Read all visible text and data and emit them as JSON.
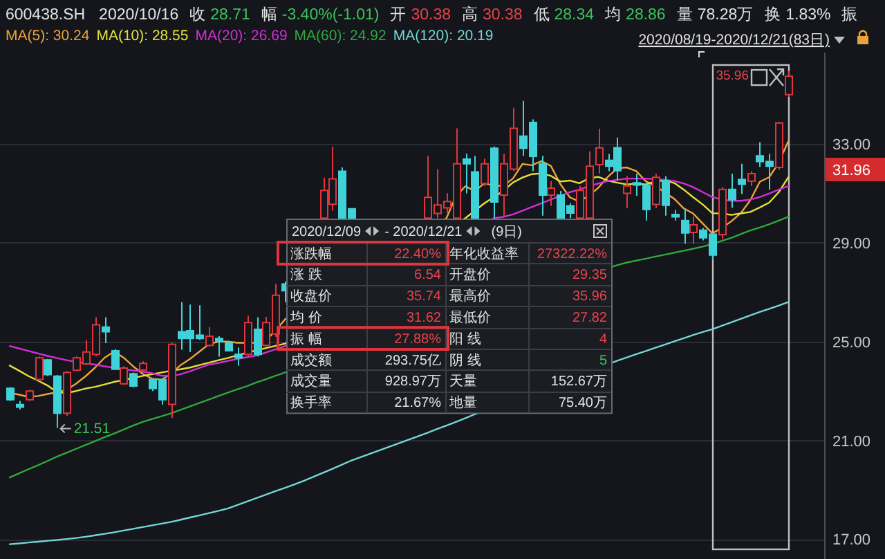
{
  "chart_data": {
    "type": "candlestick",
    "categories": [
      null,
      null,
      null,
      null,
      null,
      null,
      null,
      null,
      null,
      null,
      null,
      null,
      null,
      null,
      null,
      null,
      null,
      null,
      null,
      null,
      null,
      null,
      null,
      null,
      null,
      null,
      null,
      null,
      null,
      null,
      null,
      null,
      null,
      null,
      null,
      null,
      null,
      null,
      null,
      null,
      null,
      null,
      null,
      null,
      null,
      null,
      null,
      null,
      null,
      null,
      null,
      null,
      null,
      null,
      null,
      null,
      null,
      null,
      null,
      null,
      null,
      null,
      null,
      null,
      null,
      null,
      null,
      null,
      null,
      null,
      null,
      null,
      null,
      null,
      null,
      null,
      null,
      null,
      null,
      null,
      null,
      null,
      null
    ],
    "ohlc": [
      [
        23.11,
        23.15,
        22.6,
        22.65
      ],
      [
        22.45,
        22.6,
        22.25,
        22.35
      ],
      [
        22.65,
        23.05,
        22.6,
        23.0
      ],
      [
        23.47,
        24.4,
        23.4,
        24.34
      ],
      [
        24.26,
        24.3,
        23.6,
        23.66
      ],
      [
        23.6,
        23.65,
        21.51,
        22.1
      ],
      [
        22.1,
        23.8,
        22.0,
        23.75
      ],
      [
        23.84,
        24.4,
        23.8,
        24.34
      ],
      [
        24.1,
        25.07,
        24.05,
        24.58
      ],
      [
        24.48,
        25.99,
        24.4,
        25.68
      ],
      [
        25.59,
        25.99,
        24.94,
        25.4
      ],
      [
        24.63,
        24.7,
        23.85,
        23.88
      ],
      [
        23.29,
        24.0,
        23.25,
        23.93
      ],
      [
        23.7,
        23.75,
        23.15,
        23.2
      ],
      [
        23.85,
        24.2,
        23.8,
        24.12
      ],
      [
        23.47,
        23.5,
        23.0,
        23.1
      ],
      [
        23.47,
        23.5,
        22.45,
        22.65
      ],
      [
        22.46,
        24.95,
        21.91,
        24.89
      ],
      [
        25.4,
        26.6,
        24.67,
        25.13
      ],
      [
        25.44,
        26.5,
        24.58,
        25.13
      ],
      [
        25.26,
        26.47,
        25.07,
        25.13
      ],
      [
        24.85,
        25.59,
        24.8,
        25.22
      ],
      [
        25.13,
        25.22,
        24.39,
        25.0
      ],
      [
        24.94,
        25.0,
        24.6,
        24.63
      ],
      [
        24.48,
        24.76,
        24.03,
        24.34
      ],
      [
        24.48,
        26.05,
        24.4,
        25.77
      ],
      [
        25.5,
        25.99,
        24.4,
        24.48
      ],
      [
        24.85,
        26.0,
        24.8,
        25.77
      ],
      [
        25.31,
        27.33,
        25.2,
        26.88
      ],
      [
        27.33,
        27.43,
        26.6,
        27.06
      ],
      null,
      null,
      null,
      [
        30.0,
        31.64,
        30.0,
        31.12
      ],
      [
        30.56,
        32.89,
        30.3,
        31.59
      ],
      [
        31.9,
        32.05,
        30.0,
        30.0
      ],
      [
        30.38,
        30.38,
        30.0,
        30.0
      ],
      null,
      null,
      null,
      null,
      null,
      null,
      null,
      [
        30.0,
        32.52,
        30.0,
        30.84
      ],
      [
        30.19,
        31.98,
        30.0,
        30.53
      ],
      [
        30.41,
        31.01,
        30.2,
        30.67
      ],
      [
        30.0,
        33.63,
        30.0,
        32.2
      ],
      [
        32.39,
        32.61,
        31.0,
        32.2
      ],
      [
        31.87,
        32.52,
        30.0,
        30.0
      ],
      [
        31.4,
        32.4,
        31.3,
        32.2
      ],
      [
        32.83,
        32.9,
        30.0,
        30.65
      ],
      [
        30.93,
        32.6,
        30.1,
        32.2
      ],
      [
        31.98,
        34.47,
        31.9,
        33.63
      ],
      [
        33.32,
        34.75,
        32.52,
        32.83
      ],
      [
        33.87,
        34.0,
        31.9,
        32.5
      ],
      [
        32.2,
        32.52,
        30.1,
        30.93
      ],
      [
        30.93,
        31.5,
        30.5,
        31.21
      ],
      [
        30.93,
        31.1,
        30.0,
        30.0
      ],
      [
        30.5,
        30.6,
        30.0,
        30.2
      ],
      [
        30.0,
        31.3,
        30.0,
        31.12
      ],
      [
        30.0,
        32.7,
        30.0,
        32.1
      ],
      [
        32.16,
        33.62,
        31.8,
        32.84
      ],
      [
        32.34,
        32.6,
        31.9,
        32.1
      ],
      [
        32.85,
        33.26,
        31.52,
        31.92
      ],
      [
        31.0,
        31.7,
        30.4,
        31.3
      ],
      [
        31.43,
        31.8,
        30.9,
        31.34
      ],
      [
        31.34,
        31.43,
        29.9,
        30.35
      ],
      [
        30.55,
        31.8,
        30.4,
        31.65
      ],
      [
        31.52,
        31.7,
        30.1,
        30.52
      ],
      [
        30.15,
        30.33,
        29.9,
        30.05
      ],
      [
        29.9,
        30.4,
        28.96,
        29.4
      ],
      [
        29.42,
        30.06,
        28.96,
        29.73
      ],
      [
        29.51,
        29.6,
        29.1,
        29.2
      ],
      [
        29.35,
        29.4,
        28.3,
        28.5
      ],
      [
        29.33,
        31.25,
        29.15,
        31.16
      ],
      [
        31.16,
        31.8,
        30.42,
        30.75
      ],
      [
        31.56,
        32.2,
        30.97,
        31.37
      ],
      [
        31.5,
        31.9,
        31.3,
        31.8
      ],
      [
        32.52,
        33.07,
        32.07,
        32.29
      ],
      [
        32.29,
        32.6,
        31.15,
        32.1
      ],
      [
        32.05,
        33.9,
        31.95,
        33.85
      ],
      [
        35.0,
        35.96,
        34.9,
        35.74
      ]
    ],
    "colors": [
      "#3fd3d9",
      "#3fd3d9",
      "#e0353d",
      "#e0353d",
      "#3fd3d9",
      "#3fd3d9",
      "#e0353d",
      "#e0353d",
      "#e0353d",
      "#e0353d",
      "#3fd3d9",
      "#3fd3d9",
      "#e0353d",
      "#3fd3d9",
      "#e0353d",
      "#3fd3d9",
      "#3fd3d9",
      "#e0353d",
      "#3fd3d9",
      "#3fd3d9",
      "#3fd3d9",
      "#e0353d",
      "#3fd3d9",
      "#3fd3d9",
      "#3fd3d9",
      "#e0353d",
      "#3fd3d9",
      "#e0353d",
      "#e0353d",
      "#3fd3d9",
      null,
      null,
      null,
      "#e0353d",
      "#e0353d",
      "#3fd3d9",
      "#3fd3d9",
      null,
      null,
      null,
      null,
      null,
      null,
      null,
      "#e0353d",
      "#e0353d",
      "#e0353d",
      "#e0353d",
      "#3fd3d9",
      "#3fd3d9",
      "#e0353d",
      "#3fd3d9",
      "#e0353d",
      "#e0353d",
      "#3fd3d9",
      "#3fd3d9",
      "#3fd3d9",
      "#e0353d",
      "#3fd3d9",
      "#3fd3d9",
      "#e0353d",
      "#e0353d",
      "#e0353d",
      "#3fd3d9",
      "#3fd3d9",
      "#e0353d",
      "#3fd3d9",
      "#3fd3d9",
      "#e0353d",
      "#3fd3d9",
      "#3fd3d9",
      "#3fd3d9",
      "#e0353d",
      "#3fd3d9",
      "#3fd3d9",
      "#e0353d",
      "#3fd3d9",
      "#3fd3d9",
      "#e0353d",
      "#3fd3d9",
      "#3fd3d9",
      "#e0353d",
      "#e0353d"
    ],
    "series": [
      {
        "name": "MA(5): 30.24",
        "type": "line",
        "color": "#eda43a",
        "values": [
          22.93,
          22.85,
          22.76,
          22.8,
          22.88,
          22.95,
          23.05,
          23.3,
          23.6,
          23.95,
          24.35,
          24.6,
          24.35,
          24.0,
          23.7,
          23.5,
          23.46,
          23.7,
          24.05,
          24.3,
          24.6,
          24.9,
          25.0,
          25.0,
          24.95,
          24.95,
          24.95,
          25.05,
          25.45,
          25.9,
          null,
          null,
          null,
          null,
          null,
          null,
          null,
          null,
          null,
          null,
          null,
          null,
          null,
          null,
          null,
          null,
          30.0,
          30.89,
          31.29,
          31.09,
          31.42,
          31.31,
          31.31,
          31.6,
          32.19,
          32.14,
          32.31,
          32.11,
          31.37,
          30.84,
          30.67,
          30.91,
          31.23,
          31.67,
          32.02,
          32.05,
          31.9,
          31.49,
          31.31,
          31.03,
          30.78,
          30.39,
          30.18,
          29.78,
          29.38,
          29.6,
          29.87,
          30.2,
          30.72,
          31.47,
          31.66,
          32.24,
          33.11
        ]
      },
      {
        "name": "MA(10): 28.55",
        "type": "line",
        "color": "#e4e03a",
        "values": [
          24.03,
          23.82,
          23.6,
          23.42,
          23.22,
          22.95,
          22.92,
          23.0,
          23.1,
          23.17,
          23.27,
          23.37,
          23.45,
          23.53,
          23.61,
          23.68,
          23.75,
          23.82,
          23.88,
          23.95,
          24.05,
          24.15,
          24.25,
          24.34,
          24.45,
          24.55,
          24.65,
          24.74,
          24.83,
          24.92,
          null,
          null,
          null,
          null,
          null,
          null,
          null,
          null,
          null,
          null,
          null,
          null,
          null,
          null,
          null,
          null,
          null,
          null,
          30.0,
          30.3,
          30.6,
          30.85,
          31.1,
          31.44,
          31.64,
          31.78,
          31.81,
          31.71,
          31.48,
          31.52,
          31.41,
          31.61,
          31.67,
          31.52,
          31.43,
          31.36,
          31.4,
          31.36,
          31.49,
          31.52,
          31.42,
          31.15,
          30.84,
          30.55,
          30.2,
          30.19,
          30.13,
          30.19,
          30.25,
          30.43,
          30.63,
          31.05,
          31.65
        ]
      },
      {
        "name": "MA(20): 26.69",
        "type": "line",
        "color": "#d22fd6",
        "values": [
          24.82,
          24.72,
          24.62,
          24.52,
          24.42,
          24.33,
          24.25,
          24.18,
          24.12,
          24.07,
          24.0,
          23.94,
          23.88,
          23.83,
          23.79,
          23.72,
          23.62,
          23.6,
          23.68,
          23.8,
          23.94,
          24.07,
          24.14,
          24.22,
          24.3,
          24.37,
          24.44,
          24.56,
          24.69,
          24.82,
          null,
          null,
          null,
          null,
          null,
          null,
          null,
          null,
          null,
          null,
          null,
          null,
          null,
          null,
          null,
          null,
          null,
          null,
          null,
          null,
          null,
          30.0,
          30.05,
          30.15,
          30.3,
          30.45,
          30.6,
          30.75,
          30.9,
          31.05,
          31.15,
          31.3,
          31.4,
          31.5,
          31.55,
          31.6,
          31.6,
          31.6,
          31.58,
          31.55,
          31.5,
          31.4,
          31.25,
          31.05,
          30.85,
          30.75,
          30.7,
          30.7,
          30.75,
          30.85,
          31.0,
          31.15,
          31.3
        ]
      },
      {
        "name": "MA(60): 24.92",
        "type": "line",
        "color": "#2fa83c",
        "values": [
          19.5,
          19.67,
          19.84,
          20.0,
          20.17,
          20.35,
          20.5,
          20.66,
          20.82,
          20.97,
          21.13,
          21.28,
          21.44,
          21.6,
          21.75,
          21.87,
          21.98,
          22.1,
          22.24,
          22.38,
          22.52,
          22.66,
          22.8,
          22.94,
          23.07,
          23.2,
          23.35,
          23.48,
          23.62,
          23.75,
          null,
          null,
          null,
          null,
          null,
          null,
          null,
          null,
          null,
          null,
          null,
          null,
          null,
          null,
          null,
          null,
          null,
          null,
          null,
          null,
          null,
          null,
          null,
          null,
          null,
          null,
          null,
          null,
          null,
          null,
          null,
          null,
          null,
          null,
          28.1,
          28.2,
          28.28,
          28.36,
          28.44,
          28.52,
          28.6,
          28.68,
          28.76,
          28.85,
          28.95,
          29.08,
          29.2,
          29.35,
          29.5,
          29.62,
          29.75,
          29.9,
          30.05
        ]
      },
      {
        "name": "MA(120): 20.19",
        "type": "line",
        "color": "#74d6d6",
        "values": [
          16.8,
          16.83,
          16.87,
          16.9,
          16.94,
          16.97,
          17.01,
          17.05,
          17.1,
          17.16,
          17.22,
          17.28,
          17.35,
          17.42,
          17.49,
          17.56,
          17.63,
          17.7,
          17.79,
          17.88,
          17.97,
          18.06,
          18.15,
          18.25,
          18.39,
          18.53,
          18.67,
          18.81,
          18.95,
          19.08,
          19.22,
          19.37,
          19.53,
          19.69,
          19.85,
          20.02,
          20.19,
          20.33,
          20.47,
          20.61,
          20.75,
          20.89,
          21.03,
          21.17,
          21.31,
          21.46,
          21.6,
          21.75,
          21.9,
          22.06,
          null,
          null,
          null,
          null,
          null,
          null,
          null,
          null,
          null,
          null,
          null,
          null,
          null,
          null,
          24.23,
          24.36,
          24.49,
          24.62,
          24.75,
          24.88,
          25.01,
          25.14,
          25.27,
          25.39,
          25.5,
          25.64,
          25.78,
          25.92,
          26.06,
          26.2,
          26.33,
          26.46,
          26.6
        ]
      }
    ],
    "ylim": [
      16.2,
      36.7
    ],
    "yticks": [
      {
        "value": 17,
        "label": "17.00"
      },
      {
        "value": 21,
        "label": "21.00"
      },
      {
        "value": 25,
        "label": "25.00"
      },
      {
        "value": 29,
        "label": "29.00"
      },
      {
        "value": 33,
        "label": "33.00"
      }
    ],
    "grid": "y",
    "legend": "top left",
    "annotations": [
      "600438.SH",
      "2020/10/16",
      "收",
      "28.71",
      "幅",
      "-3.40%(-1.01)",
      "开",
      "30.38",
      "高",
      "30.38",
      "低",
      "28.34",
      "均",
      "28.86",
      "量",
      "78.28万",
      "换",
      "1.83%",
      "振",
      "2020/08/19-2020/12/21(83日)",
      "2020/12/09",
      "- 2020/12/21",
      "(9日)",
      "涨跌幅",
      "22.40%",
      "年化收益率",
      "27322.22%",
      "涨 跌",
      "6.54",
      "开盘价",
      "29.35",
      "收盘价",
      "35.74",
      "最高价",
      "35.96",
      "均 价",
      "31.62",
      "最低价",
      "27.82",
      "振 幅",
      "27.88%",
      "阳 线",
      "4",
      "成交额",
      "293.75亿",
      "阴 线",
      "5",
      "成交量",
      "928.97万",
      "天量",
      "152.67万",
      "换手率",
      "21.67%",
      "地量",
      "75.40万",
      "31.96",
      "35.96",
      "21.51"
    ]
  }
}
